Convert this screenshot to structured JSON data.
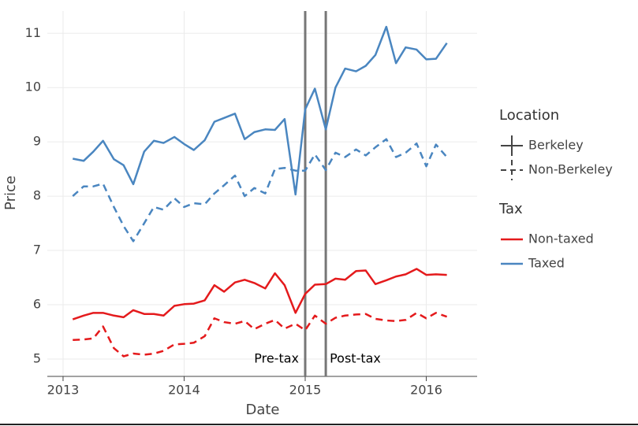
{
  "chart_data": {
    "type": "line",
    "x_label": "Date",
    "y_label": "Price",
    "xlim": [
      2012.87,
      2016.42
    ],
    "xticks": [
      2013,
      2014,
      2015,
      2016
    ],
    "ylim": [
      4.68,
      11.41
    ],
    "yticks": [
      5,
      6,
      7,
      8,
      9,
      10,
      11
    ],
    "grid": true,
    "x": [
      2013.08,
      2013.17,
      2013.25,
      2013.33,
      2013.42,
      2013.5,
      2013.58,
      2013.67,
      2013.75,
      2013.83,
      2013.92,
      2014.0,
      2014.08,
      2014.17,
      2014.25,
      2014.33,
      2014.42,
      2014.5,
      2014.58,
      2014.67,
      2014.75,
      2014.83,
      2014.92,
      2015.0,
      2015.08,
      2015.17,
      2015.25,
      2015.33,
      2015.42,
      2015.5,
      2015.58,
      2015.67,
      2015.75,
      2015.83,
      2015.92,
      2016.0,
      2016.08,
      2016.17
    ],
    "series": [
      {
        "location": "Berkeley",
        "tax": "Taxed",
        "values": [
          8.69,
          8.65,
          8.82,
          9.02,
          8.68,
          8.57,
          8.22,
          8.82,
          9.02,
          8.98,
          9.09,
          8.96,
          8.85,
          9.03,
          9.37,
          9.44,
          9.52,
          9.05,
          9.18,
          9.23,
          9.22,
          9.42,
          8.03,
          9.6,
          9.98,
          9.23,
          10.0,
          10.35,
          10.3,
          10.4,
          10.6,
          11.12,
          10.45,
          10.74,
          10.7,
          10.52,
          10.53,
          10.82
        ]
      },
      {
        "location": "Non-Berkeley",
        "tax": "Taxed",
        "values": [
          8.0,
          8.18,
          8.18,
          8.23,
          7.8,
          7.45,
          7.17,
          7.5,
          7.8,
          7.75,
          7.96,
          7.8,
          7.87,
          7.85,
          8.05,
          8.2,
          8.38,
          8.0,
          8.15,
          8.05,
          8.5,
          8.52,
          8.47,
          8.47,
          8.77,
          8.48,
          8.8,
          8.72,
          8.86,
          8.75,
          8.9,
          9.05,
          8.72,
          8.8,
          8.97,
          8.55,
          8.95,
          8.72
        ]
      },
      {
        "location": "Berkeley",
        "tax": "Non-taxed",
        "values": [
          5.73,
          5.8,
          5.85,
          5.85,
          5.8,
          5.77,
          5.9,
          5.83,
          5.83,
          5.8,
          5.98,
          6.01,
          6.02,
          6.08,
          6.36,
          6.24,
          6.41,
          6.46,
          6.4,
          6.3,
          6.58,
          6.36,
          5.85,
          6.2,
          6.37,
          6.38,
          6.48,
          6.46,
          6.62,
          6.63,
          6.38,
          6.45,
          6.52,
          6.56,
          6.66,
          6.55,
          6.56,
          6.55
        ]
      },
      {
        "location": "Non-Berkeley",
        "tax": "Non-taxed",
        "values": [
          5.35,
          5.36,
          5.38,
          5.6,
          5.2,
          5.05,
          5.1,
          5.08,
          5.1,
          5.15,
          5.27,
          5.28,
          5.3,
          5.42,
          5.75,
          5.68,
          5.65,
          5.7,
          5.55,
          5.65,
          5.72,
          5.56,
          5.65,
          5.53,
          5.8,
          5.65,
          5.76,
          5.8,
          5.82,
          5.83,
          5.74,
          5.71,
          5.7,
          5.72,
          5.85,
          5.75,
          5.85,
          5.78
        ]
      }
    ],
    "legends": [
      {
        "title": "Location",
        "items": [
          {
            "label": "Berkeley",
            "dash": "solid"
          },
          {
            "label": "Non-Berkeley",
            "dash": "dashed"
          }
        ]
      },
      {
        "title": "Tax",
        "items": [
          {
            "label": "Non-taxed",
            "color": "#e41a1c"
          },
          {
            "label": "Taxed",
            "color": "#4a86c0"
          }
        ]
      }
    ],
    "annotations": [
      {
        "x": 2015.0,
        "label": "Pre-tax"
      },
      {
        "x": 2015.17,
        "label": "Post-tax"
      }
    ]
  }
}
